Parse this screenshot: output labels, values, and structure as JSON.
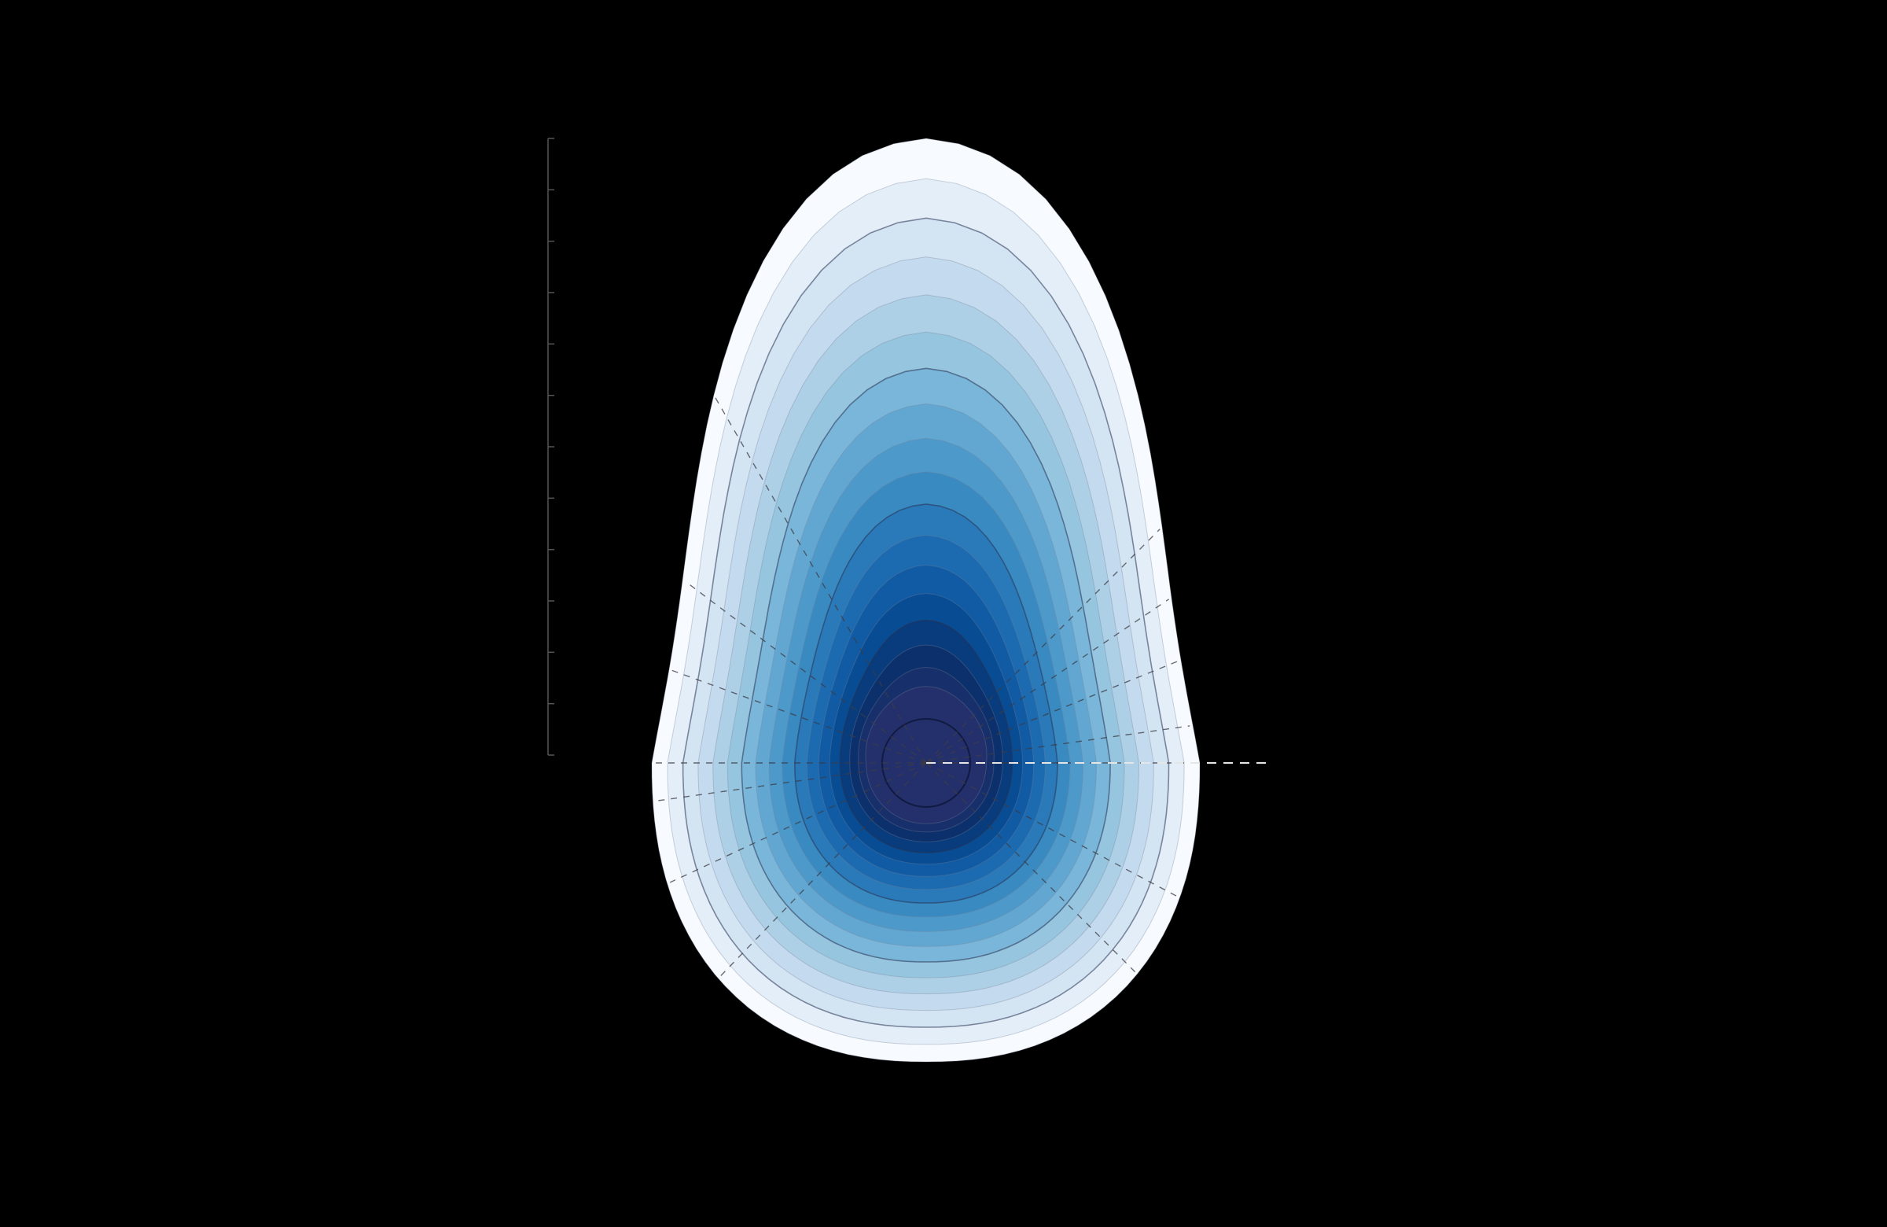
{
  "chart_data": {
    "type": "heatmap",
    "subtype": "polar-density-contour",
    "colormap": [
      "#f7fbff",
      "#deebf7",
      "#c6dbef",
      "#9ecae1",
      "#6baed6",
      "#4292c6",
      "#2171b5",
      "#08519c",
      "#08306b",
      "#24306b"
    ],
    "title": "",
    "xlabel": "",
    "ylabel": "",
    "legend": "none",
    "grid": false,
    "background": "#000000",
    "contour_levels": 18,
    "scale_ticks": 13
  }
}
